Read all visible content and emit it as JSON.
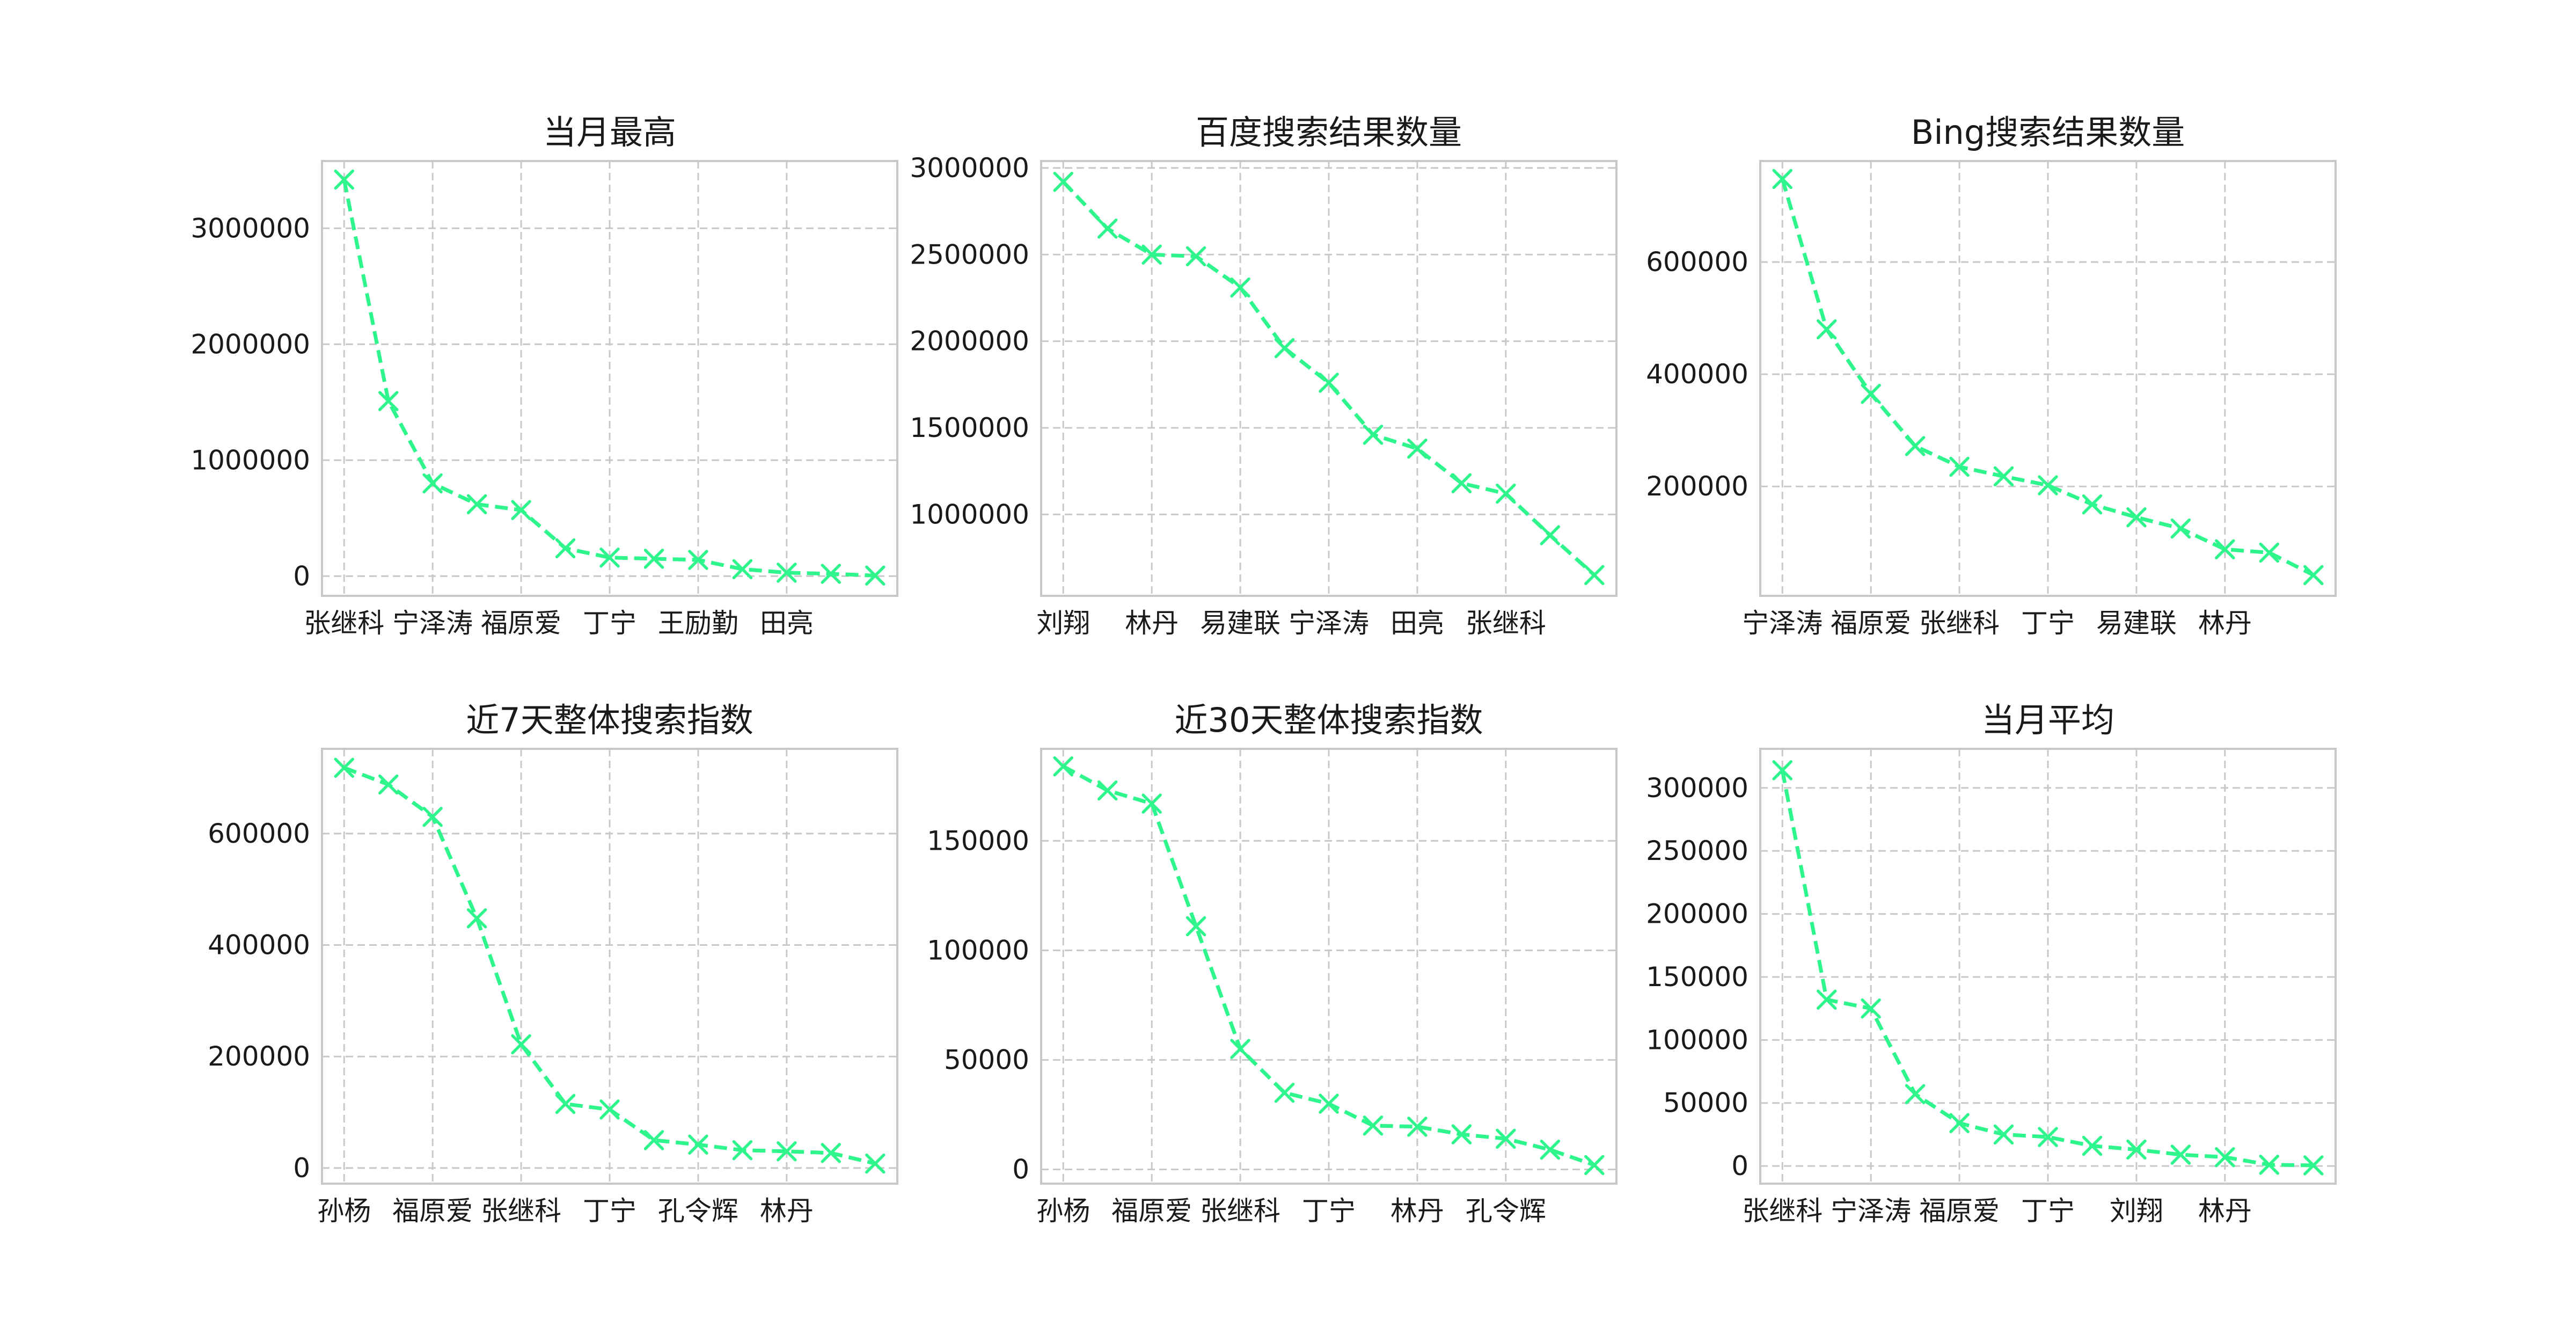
{
  "figure": {
    "line_color": "#2ef58c",
    "grid_color": "#c8c8c8",
    "frame_color": "#c8c8c8",
    "line_style": "dashed",
    "marker": "x"
  },
  "chart_data": [
    {
      "type": "line",
      "title": "当月最高",
      "xlabel": "",
      "ylabel": "",
      "x_tick_labels": [
        "张继科",
        "宁泽涛",
        "福原爱",
        "丁宁",
        "王励勤",
        "田亮"
      ],
      "y_ticks": [
        0,
        1000000,
        2000000,
        3000000
      ],
      "ylim": [
        -170000,
        3580000
      ],
      "values": [
        3420000,
        1510000,
        800000,
        620000,
        570000,
        240000,
        160000,
        150000,
        140000,
        60000,
        30000,
        20000,
        5000
      ],
      "grid": true
    },
    {
      "type": "line",
      "title": "百度搜索结果数量",
      "xlabel": "",
      "ylabel": "",
      "x_tick_labels": [
        "刘翔",
        "林丹",
        "易建联",
        "宁泽涛",
        "田亮",
        "张继科"
      ],
      "y_ticks": [
        1000000,
        1500000,
        2000000,
        2500000,
        3000000
      ],
      "ylim": [
        530000,
        3040000
      ],
      "values": [
        2920000,
        2650000,
        2500000,
        2490000,
        2310000,
        1960000,
        1760000,
        1460000,
        1380000,
        1180000,
        1120000,
        880000,
        650000
      ],
      "grid": true
    },
    {
      "type": "line",
      "title": "Bing搜索结果数量",
      "xlabel": "",
      "ylabel": "",
      "x_tick_labels": [
        "宁泽涛",
        "福原爱",
        "张继科",
        "丁宁",
        "易建联",
        "林丹"
      ],
      "y_ticks": [
        200000,
        400000,
        600000
      ],
      "ylim": [
        5000,
        780000
      ],
      "values": [
        748000,
        480000,
        365000,
        272000,
        235000,
        218000,
        202000,
        168000,
        145000,
        125000,
        88000,
        82000,
        42000
      ],
      "grid": true
    },
    {
      "type": "line",
      "title": "近7天整体搜索指数",
      "xlabel": "",
      "ylabel": "",
      "x_tick_labels": [
        "孙杨",
        "福原爱",
        "张继科",
        "丁宁",
        "孔令辉",
        "林丹"
      ],
      "y_ticks": [
        0,
        200000,
        400000,
        600000
      ],
      "ylim": [
        -28000,
        752000
      ],
      "values": [
        718000,
        688000,
        630000,
        448000,
        222000,
        115000,
        105000,
        50000,
        42000,
        32000,
        30000,
        27000,
        8000
      ],
      "grid": true
    },
    {
      "type": "line",
      "title": "近30天整体搜索指数",
      "xlabel": "",
      "ylabel": "",
      "x_tick_labels": [
        "孙杨",
        "福原爱",
        "张继科",
        "丁宁",
        "林丹",
        "孔令辉"
      ],
      "y_ticks": [
        0,
        50000,
        100000,
        150000
      ],
      "ylim": [
        -6500,
        192000
      ],
      "values": [
        184000,
        173000,
        167000,
        111000,
        55000,
        35000,
        30000,
        20000,
        19500,
        16000,
        14000,
        9000,
        2000
      ],
      "grid": true
    },
    {
      "type": "line",
      "title": "当月平均",
      "xlabel": "",
      "ylabel": "",
      "x_tick_labels": [
        "张继科",
        "宁泽涛",
        "福原爱",
        "丁宁",
        "刘翔",
        "林丹"
      ],
      "y_ticks": [
        0,
        50000,
        100000,
        150000,
        200000,
        250000,
        300000
      ],
      "ylim": [
        -14000,
        331000
      ],
      "values": [
        314000,
        132000,
        125000,
        57000,
        34000,
        25000,
        23000,
        16000,
        13000,
        9000,
        7000,
        1000,
        500
      ],
      "grid": true
    }
  ]
}
